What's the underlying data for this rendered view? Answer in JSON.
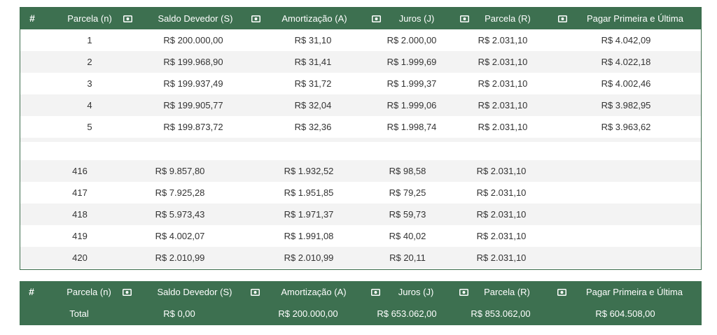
{
  "header": {
    "hash": "#",
    "col_n": "Parcela (n)",
    "col_s": "Saldo Devedor (S)",
    "col_a": "Amortização (A)",
    "col_j": "Juros (J)",
    "col_r": "Parcela (R)",
    "col_p": "Pagar Primeira e Última",
    "icon": "money-bill-icon"
  },
  "first_rows": [
    {
      "n": "1",
      "s": "R$ 200.000,00",
      "a": "R$ 31,10",
      "j": "R$ 2.000,00",
      "r": "R$ 2.031,10",
      "p": "R$ 4.042,09"
    },
    {
      "n": "2",
      "s": "R$ 199.968,90",
      "a": "R$ 31,41",
      "j": "R$ 1.999,69",
      "r": "R$ 2.031,10",
      "p": "R$ 4.022,18"
    },
    {
      "n": "3",
      "s": "R$ 199.937,49",
      "a": "R$ 31,72",
      "j": "R$ 1.999,37",
      "r": "R$ 2.031,10",
      "p": "R$ 4.002,46"
    },
    {
      "n": "4",
      "s": "R$ 199.905,77",
      "a": "R$ 32,04",
      "j": "R$ 1.999,06",
      "r": "R$ 2.031,10",
      "p": "R$ 3.982,95"
    },
    {
      "n": "5",
      "s": "R$ 199.873,72",
      "a": "R$ 32,36",
      "j": "R$ 1.998,74",
      "r": "R$ 2.031,10",
      "p": "R$ 3.963,62"
    }
  ],
  "last_rows": [
    {
      "n": "416",
      "s": "R$ 9.857,80",
      "a": "R$ 1.932,52",
      "j": "R$ 98,58",
      "r": "R$ 2.031,10"
    },
    {
      "n": "417",
      "s": "R$ 7.925,28",
      "a": "R$ 1.951,85",
      "j": "R$ 79,25",
      "r": "R$ 2.031,10"
    },
    {
      "n": "418",
      "s": "R$ 5.973,43",
      "a": "R$ 1.971,37",
      "j": "R$ 59,73",
      "r": "R$ 2.031,10"
    },
    {
      "n": "419",
      "s": "R$ 4.002,07",
      "a": "R$ 1.991,08",
      "j": "R$ 40,02",
      "r": "R$ 2.031,10"
    },
    {
      "n": "420",
      "s": "R$ 2.010,99",
      "a": "R$ 2.010,99",
      "j": "R$ 20,11",
      "r": "R$ 2.031,10"
    }
  ],
  "total": {
    "label": "Total",
    "s": "R$ 0,00",
    "a": "R$ 200.000,00",
    "j": "R$ 653.062,00",
    "r": "R$ 853.062,00",
    "p": "R$ 604.508,00"
  },
  "colors": {
    "header_bg": "#3d7050",
    "border": "#3a6b4a",
    "alt_row": "#f3f3f3"
  }
}
